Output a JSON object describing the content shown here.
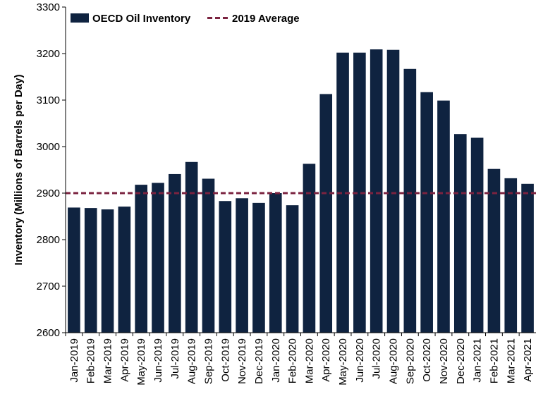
{
  "chart_data": {
    "type": "bar",
    "title": "",
    "xlabel": "",
    "ylabel": "Inventory (Millions of Barrels per Day)",
    "ylim": [
      2600,
      3300
    ],
    "yticks": [
      2600,
      2700,
      2800,
      2900,
      3000,
      3100,
      3200,
      3300
    ],
    "grid": false,
    "legend": "top-left",
    "categories": [
      "Jan-2019",
      "Feb-2019",
      "Mar-2019",
      "Apr-2019",
      "May-2019",
      "Jun-2019",
      "Jul-2019",
      "Aug-2019",
      "Sep-2019",
      "Oct-2019",
      "Nov-2019",
      "Dec-2019",
      "Jan-2020",
      "Feb-2020",
      "Mar-2020",
      "Apr-2020",
      "May-2020",
      "Jun-2020",
      "Jul-2020",
      "Aug-2020",
      "Sep-2020",
      "Oct-2020",
      "Nov-2020",
      "Dec-2020",
      "Jan-2021",
      "Feb-2021",
      "Mar-2021",
      "Apr-2021"
    ],
    "series": [
      {
        "name": "OECD Oil Inventory",
        "kind": "bar",
        "color": "#0f2340",
        "values": [
          2869,
          2868,
          2865,
          2871,
          2918,
          2922,
          2941,
          2967,
          2931,
          2883,
          2889,
          2879,
          2900,
          2874,
          2963,
          3113,
          3202,
          3202,
          3209,
          3208,
          3167,
          3117,
          3099,
          3027,
          3019,
          2952,
          2932,
          2920
        ]
      },
      {
        "name": "2019 Average",
        "kind": "line",
        "style": "dashed",
        "color": "#7b2340",
        "value": 2900
      }
    ]
  }
}
